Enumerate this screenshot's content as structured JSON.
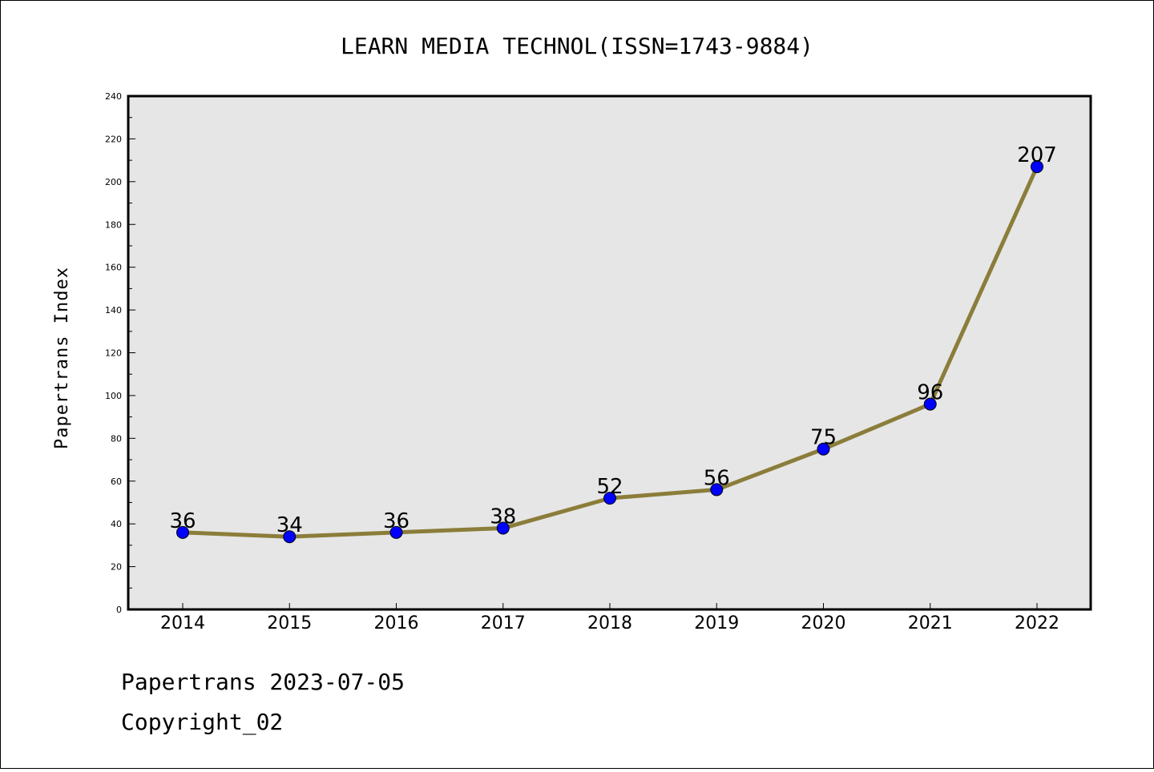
{
  "footer": {
    "line1": "Papertrans 2023-07-05",
    "line2": "Copyright_02"
  },
  "colors": {
    "plot_bg": "#e6e6e6",
    "line": "#8b7d3a",
    "marker": "#0000ff"
  },
  "chart_data": {
    "type": "line",
    "title": "LEARN MEDIA TECHNOL(ISSN=1743-9884)",
    "xlabel": "",
    "ylabel": "Papertrans Index",
    "x": [
      "2014",
      "2015",
      "2016",
      "2017",
      "2018",
      "2019",
      "2020",
      "2021",
      "2022"
    ],
    "series": [
      {
        "values": [
          36,
          34,
          36,
          38,
          52,
          56,
          75,
          96,
          207
        ]
      }
    ],
    "ylim": [
      0,
      240
    ],
    "yticks": [
      0,
      20,
      40,
      60,
      80,
      100,
      120,
      140,
      160,
      180,
      200,
      220,
      240
    ],
    "grid": false,
    "legend": "none"
  }
}
